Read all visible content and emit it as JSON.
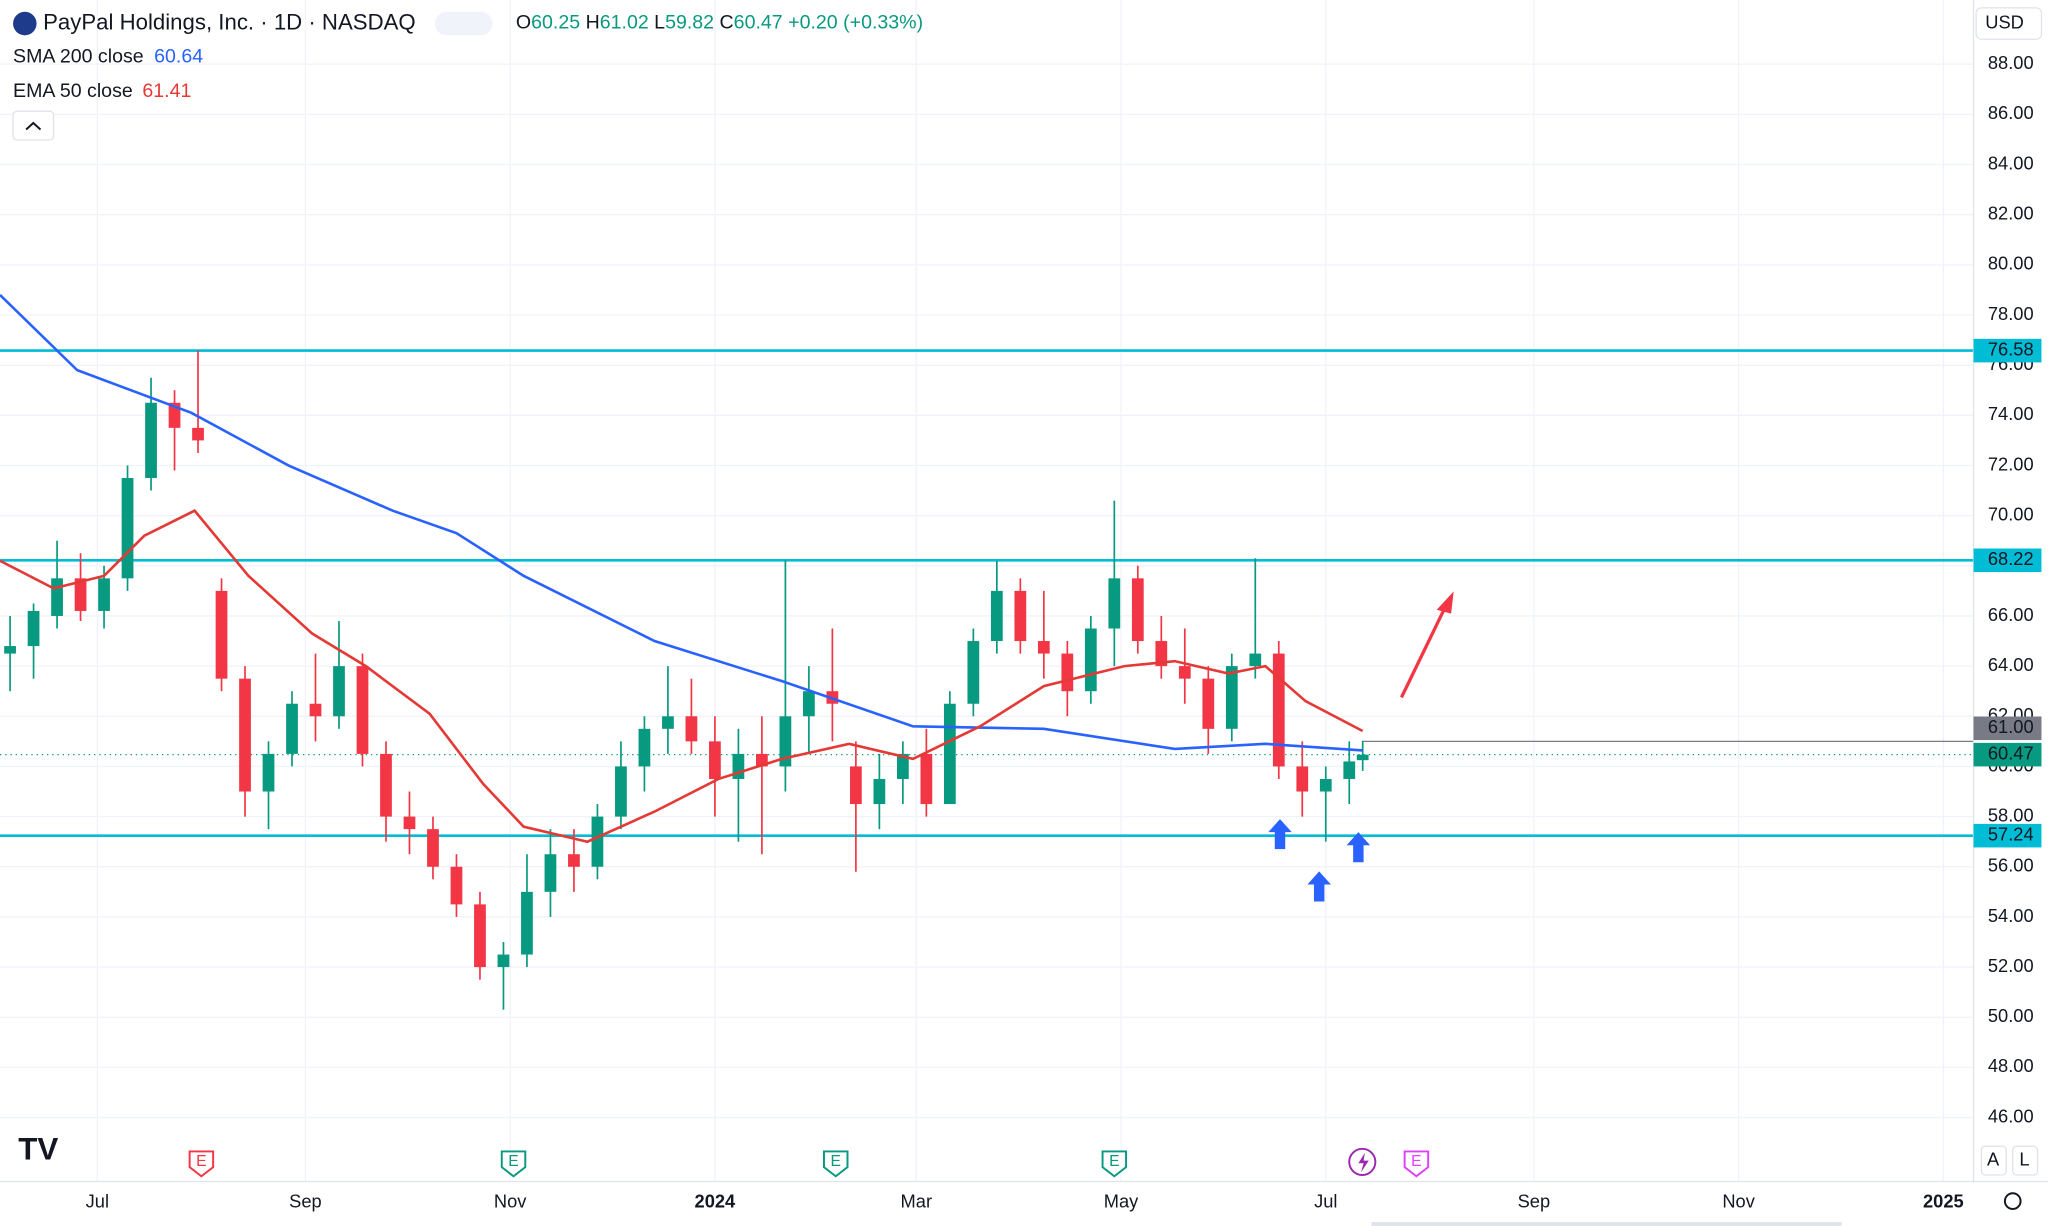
{
  "chart_data": {
    "type": "candlestick",
    "symbol": "PayPal Holdings, Inc. · 1D · NASDAQ",
    "ohlc_header": {
      "o_label": "O",
      "open": 60.25,
      "h_label": "H",
      "high": 61.02,
      "l_label": "L",
      "low": 59.82,
      "c_label": "C",
      "close": 60.47,
      "change": "+0.20",
      "change_pct": "(+0.33%)"
    },
    "currency": "USD",
    "xlim": [
      0,
      588
    ],
    "ylim": [
      43.45,
      90.56
    ],
    "xticks": [
      {
        "value": 29,
        "label": "Jul"
      },
      {
        "value": 91,
        "label": "Sep"
      },
      {
        "value": 152,
        "label": "Nov"
      },
      {
        "value": 213,
        "label": "2024"
      },
      {
        "value": 273,
        "label": "Mar"
      },
      {
        "value": 334,
        "label": "May"
      },
      {
        "value": 395,
        "label": "Jul"
      },
      {
        "value": 457,
        "label": "Sep"
      },
      {
        "value": 518,
        "label": "Nov"
      },
      {
        "value": 579,
        "label": "2025"
      }
    ],
    "yticks": [
      {
        "value": 46,
        "label": "46.00"
      },
      {
        "value": 48,
        "label": "48.00"
      },
      {
        "value": 50,
        "label": "50.00"
      },
      {
        "value": 52,
        "label": "52.00"
      },
      {
        "value": 54,
        "label": "54.00"
      },
      {
        "value": 56,
        "label": "56.00"
      },
      {
        "value": 58,
        "label": "58.00"
      },
      {
        "value": 60,
        "label": "60.00"
      },
      {
        "value": 62,
        "label": "62.00"
      },
      {
        "value": 64,
        "label": "64.00"
      },
      {
        "value": 66,
        "label": "66.00"
      },
      {
        "value": 68,
        "label": "68.00"
      },
      {
        "value": 70,
        "label": "70.00"
      },
      {
        "value": 72,
        "label": "72.00"
      },
      {
        "value": 74,
        "label": "74.00"
      },
      {
        "value": 76,
        "label": "76.00"
      },
      {
        "value": 78,
        "label": "78.00"
      },
      {
        "value": 80,
        "label": "80.00"
      },
      {
        "value": 82,
        "label": "82.00"
      },
      {
        "value": 84,
        "label": "84.00"
      },
      {
        "value": 86,
        "label": "86.00"
      },
      {
        "value": 88,
        "label": "88.00"
      }
    ],
    "grid": true,
    "up_color": "#089981",
    "down_color": "#f23645",
    "candles": {
      "x": [
        3,
        10,
        17,
        24,
        31,
        38,
        45,
        52,
        59,
        66,
        73,
        80,
        87,
        94,
        101,
        108,
        115,
        122,
        129,
        136,
        143,
        150,
        157,
        164,
        171,
        178,
        185,
        192,
        199,
        206,
        213,
        220,
        227,
        234,
        241,
        248,
        255,
        262,
        269,
        276,
        283,
        290,
        297,
        304,
        311,
        318,
        325,
        332,
        339,
        346,
        353,
        360,
        367,
        374,
        381,
        388,
        395,
        402,
        406
      ],
      "open": [
        64.5,
        64.8,
        66,
        67.5,
        66.2,
        67.5,
        71.5,
        74.5,
        73.5,
        67,
        63.5,
        59,
        60.5,
        62.5,
        62,
        64,
        60.5,
        58,
        57.5,
        56,
        54.5,
        52,
        52.5,
        55,
        56.5,
        56,
        58,
        60,
        61.5,
        62,
        61,
        59.5,
        60.5,
        60,
        62,
        63,
        60,
        58.5,
        59.5,
        60.5,
        58.5,
        62.5,
        65,
        67,
        65,
        64.5,
        63,
        65.5,
        67.5,
        65,
        64,
        63.5,
        61.5,
        64,
        64.5,
        60,
        59,
        59.5,
        60.25
      ],
      "high": [
        66,
        66.5,
        69,
        68.5,
        68,
        72,
        75.5,
        75,
        76.58,
        67.5,
        64,
        61,
        63,
        64.5,
        65.8,
        64.5,
        61,
        59,
        58,
        56.5,
        55,
        53,
        56.5,
        57.5,
        57.5,
        58.5,
        61,
        62,
        64,
        63.5,
        62,
        61.5,
        62,
        68.22,
        64,
        65.5,
        61,
        60.5,
        61,
        61.5,
        63,
        65.5,
        68.2,
        67.5,
        67,
        65,
        66,
        70.6,
        68,
        66,
        65.5,
        64,
        64.5,
        68.3,
        65,
        61,
        60,
        61,
        61.02
      ],
      "low": [
        63,
        63.5,
        65.5,
        65.8,
        65.5,
        67,
        71,
        71.8,
        72.5,
        63,
        58,
        57.5,
        60,
        61,
        61.5,
        60,
        57,
        56.5,
        55.5,
        54,
        51.5,
        50.3,
        52,
        54,
        55,
        55.5,
        57.5,
        59,
        60.5,
        60.5,
        58,
        57,
        56.5,
        59,
        60.5,
        61,
        55.8,
        57.5,
        58.5,
        58,
        58.5,
        62,
        64.5,
        64.5,
        63.5,
        62,
        62.5,
        64,
        64.5,
        63.5,
        62.5,
        60.5,
        61,
        63.5,
        59.5,
        58,
        57,
        58.5,
        59.82
      ],
      "close": [
        64.8,
        66.2,
        67.5,
        66.2,
        67.5,
        71.5,
        74.5,
        73.5,
        73,
        63.5,
        59,
        60.5,
        62.5,
        62,
        64,
        60.5,
        58,
        57.5,
        56,
        54.5,
        52,
        52.5,
        55,
        56.5,
        56,
        58,
        60,
        61.5,
        62,
        61,
        59.5,
        60.5,
        60,
        62,
        63,
        62.5,
        58.5,
        59.5,
        60.5,
        58.5,
        62.5,
        65,
        67,
        65,
        64.5,
        63,
        65.5,
        67.5,
        65,
        64,
        63.5,
        61.5,
        64,
        64.5,
        60,
        59,
        59.5,
        60.2,
        60.47
      ]
    },
    "series": [
      {
        "name": "SMA 200 close",
        "color": "#2962ff",
        "last": 60.64,
        "x": [
          0,
          23,
          57,
          86,
          117,
          136,
          156,
          195,
          233,
          272,
          311,
          350,
          377,
          406
        ],
        "values": [
          78.8,
          75.8,
          74.1,
          72,
          70.2,
          69.3,
          67.6,
          65,
          63.4,
          61.6,
          61.5,
          60.7,
          60.9,
          60.64
        ]
      },
      {
        "name": "EMA 50 close",
        "color": "#e53935",
        "last": 61.41,
        "x": [
          0,
          16,
          31,
          43,
          58,
          74,
          93,
          109,
          128,
          144,
          156,
          175,
          195,
          214,
          233,
          253,
          272,
          292,
          311,
          335,
          350,
          366,
          377,
          389,
          406
        ],
        "values": [
          68.2,
          67.1,
          67.6,
          69.2,
          70.2,
          67.6,
          65.3,
          64,
          62.1,
          59.3,
          57.6,
          57,
          58.2,
          59.5,
          60.3,
          60.9,
          60.3,
          61.6,
          63.2,
          64,
          64.2,
          63.7,
          64,
          62.6,
          61.41
        ]
      }
    ],
    "levels": [
      76.58,
      68.22,
      57.24
    ],
    "level_color": "#00bcd4",
    "last_price": 60.47,
    "high_marker": {
      "value": 61,
      "label": "61.00"
    },
    "events": {
      "x": [
        60,
        153,
        249,
        332,
        422
      ],
      "labels": [
        "E",
        "E",
        "E",
        "E",
        "E"
      ]
    },
    "controls": [
      "A",
      "L"
    ]
  }
}
